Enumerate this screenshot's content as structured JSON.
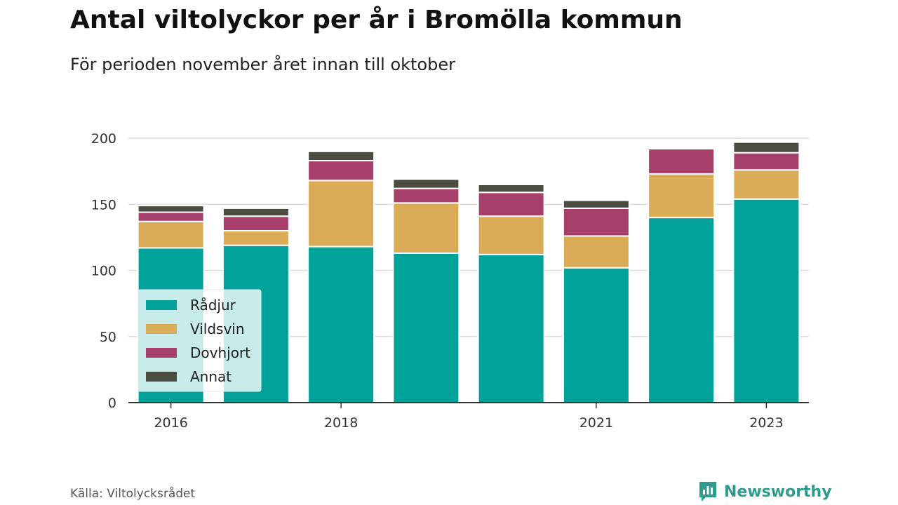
{
  "chart_data": {
    "type": "bar",
    "stacked": true,
    "title": "Antal viltolyckor per år i Bromölla kommun",
    "subtitle": "För perioden november året innan till oktober",
    "categories": [
      "2016",
      "2017",
      "2018",
      "2019",
      "2020",
      "2021",
      "2022",
      "2023"
    ],
    "x_tick_labels": [
      "2016",
      "",
      "2018",
      "",
      "",
      "2021",
      "",
      "2023"
    ],
    "series": [
      {
        "name": "Rådjur",
        "color": "#00a29a",
        "values": [
          117,
          119,
          118,
          113,
          112,
          102,
          140,
          154
        ]
      },
      {
        "name": "Vildsvin",
        "color": "#dbac57",
        "values": [
          20,
          11,
          50,
          38,
          29,
          24,
          33,
          22
        ]
      },
      {
        "name": "Dovhjort",
        "color": "#a63f69",
        "values": [
          7,
          11,
          15,
          11,
          18,
          21,
          19,
          13
        ]
      },
      {
        "name": "Annat",
        "color": "#4b4d40",
        "values": [
          5,
          6,
          7,
          7,
          6,
          6,
          0,
          8
        ]
      }
    ],
    "yticks": [
      0,
      50,
      100,
      150,
      200
    ],
    "ylim": [
      0,
      200
    ],
    "grid": true,
    "legend": "bottom-left"
  },
  "source": "Källa: Viltolycksrådet",
  "brand": "Newsworthy",
  "brand_icon": "newsworthy-logo-icon"
}
